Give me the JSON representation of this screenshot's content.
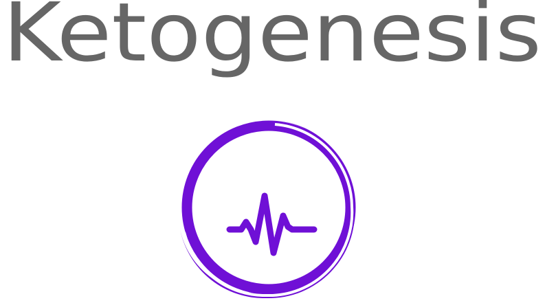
{
  "logo": {
    "wordmark": "Ketogenesis",
    "wordmark_color": "#666666",
    "emblem_icon": "heartbeat-circle-icon",
    "emblem_color": "#6f10d6"
  }
}
